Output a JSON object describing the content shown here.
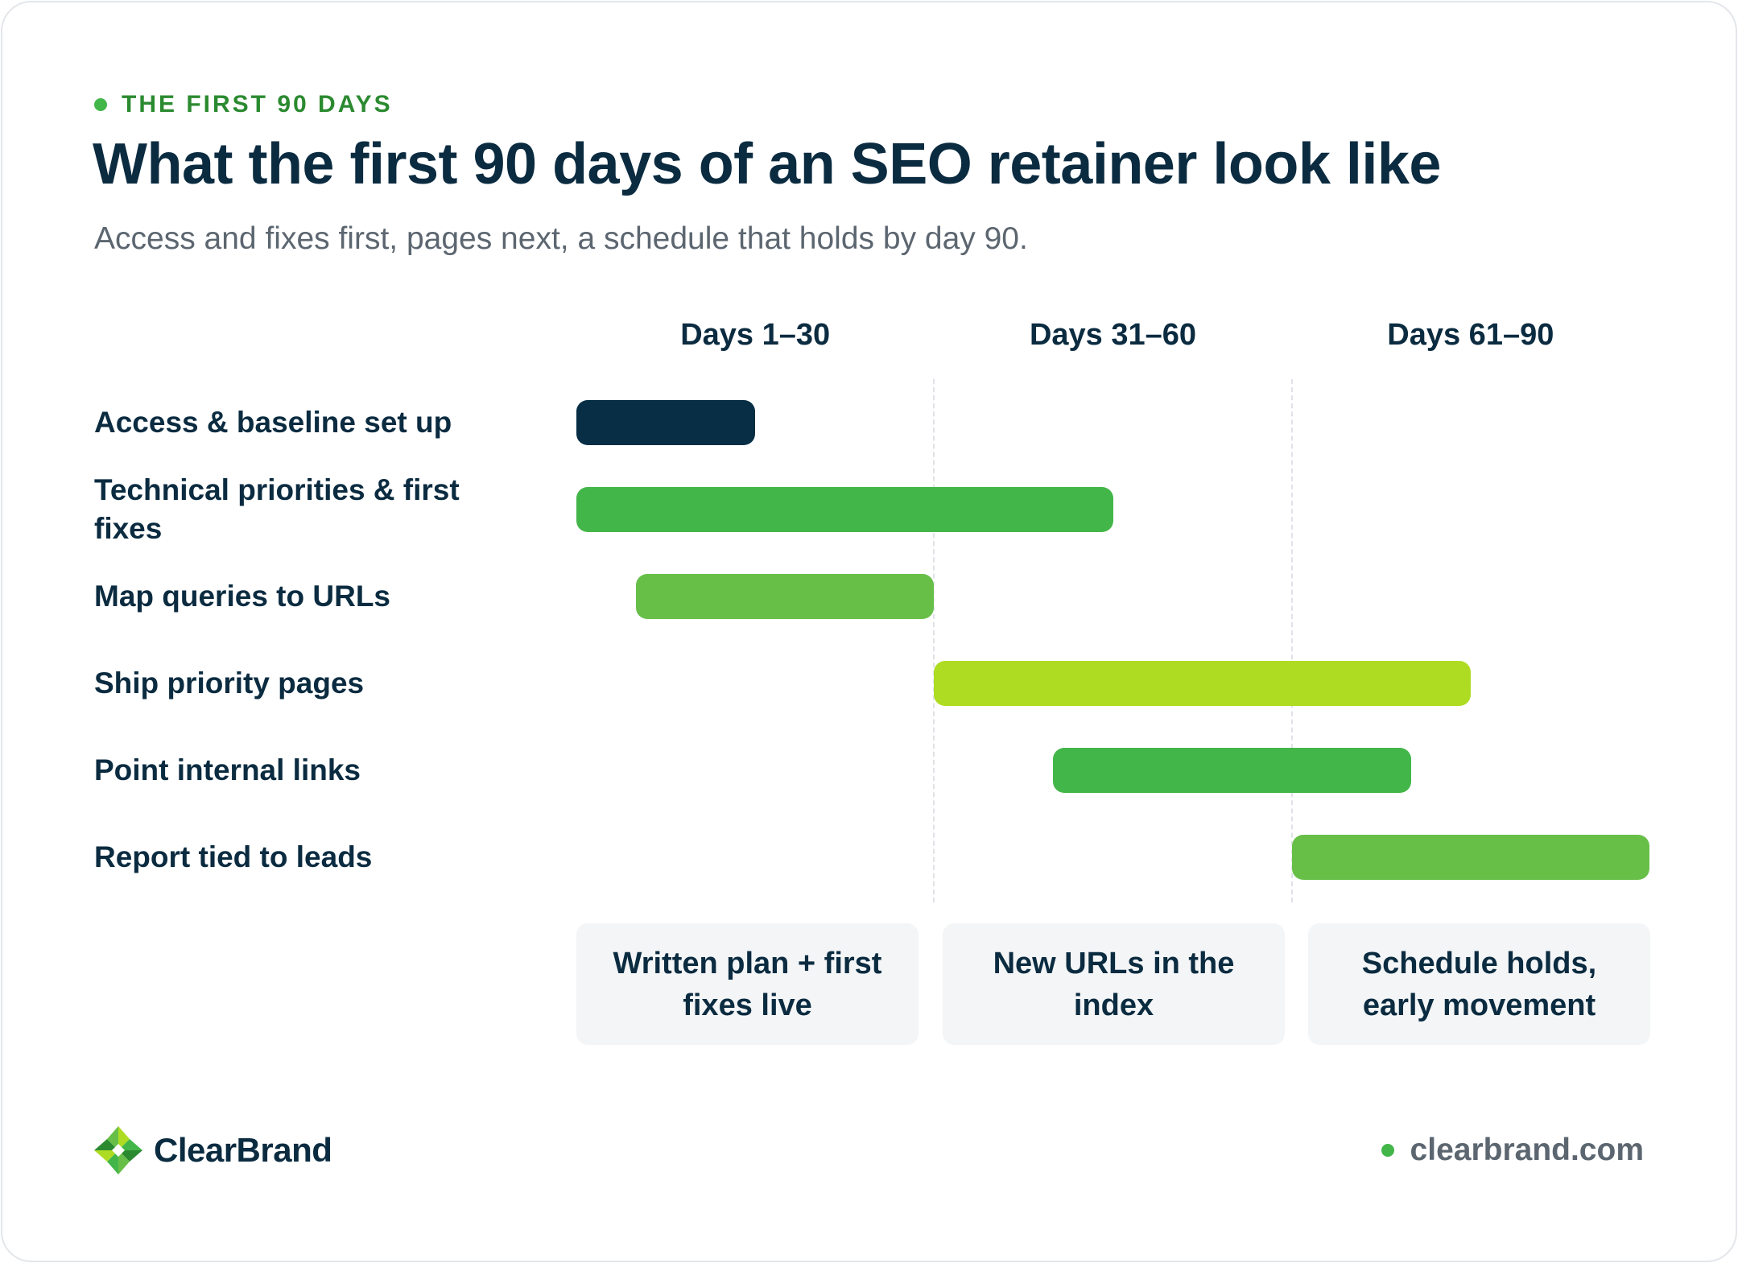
{
  "eyebrow": "THE FIRST 90 DAYS",
  "title": "What the first 90 days of an SEO retainer look like",
  "subtitle": "Access and fixes first, pages next, a schedule that holds by day 90.",
  "colors": {
    "navy": "#072e44",
    "green": "#43b649",
    "light_green": "#67bf48",
    "lime": "#aedc22",
    "accent_dot": "#43b649"
  },
  "chart_data": {
    "type": "gantt",
    "x_unit": "days",
    "xlim": [
      1,
      90
    ],
    "periods": [
      {
        "label": "Days 1–30",
        "start": 1,
        "end": 30
      },
      {
        "label": "Days 31–60",
        "start": 31,
        "end": 60
      },
      {
        "label": "Days 61–90",
        "start": 61,
        "end": 90
      }
    ],
    "tasks": [
      {
        "label": "Access & baseline set up",
        "start": 1,
        "end": 15,
        "color": "#072e44"
      },
      {
        "label": "Technical priorities & first fixes",
        "start": 1,
        "end": 45,
        "color": "#43b649"
      },
      {
        "label": "Map queries to URLs",
        "start": 6,
        "end": 30,
        "color": "#67bf48"
      },
      {
        "label": "Ship priority pages",
        "start": 31,
        "end": 75,
        "color": "#aedc22"
      },
      {
        "label": "Point internal links",
        "start": 41,
        "end": 70,
        "color": "#43b649"
      },
      {
        "label": "Report tied to leads",
        "start": 61,
        "end": 90,
        "color": "#67bf48"
      }
    ],
    "outcomes": [
      "Written plan + first fixes live",
      "New URLs in the index",
      "Schedule holds, early movement"
    ]
  },
  "footer": {
    "brand": "ClearBrand",
    "website": "clearbrand.com"
  }
}
